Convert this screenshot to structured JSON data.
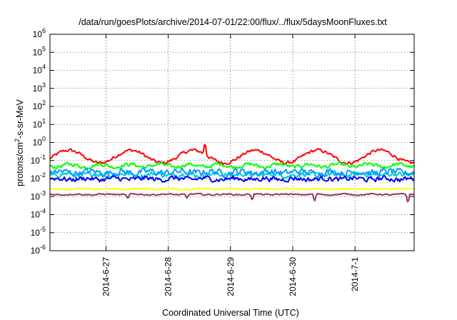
{
  "chart_data": {
    "type": "line",
    "title": "/data/run/goesPlots/archive/2014-07-01/22:00/flux/../flux/5daysMoonFluxes.txt",
    "xlabel": "Coordinated Universal Time (UTC)",
    "ylabel": {
      "base": "protons/cm",
      "sup": "2",
      "rest": "-s-sr-MeV"
    },
    "y_scale": "log",
    "ylim_exponents": [
      -6,
      6
    ],
    "y_ticks": [
      {
        "base": "10",
        "exp": "6"
      },
      {
        "base": "10",
        "exp": "5"
      },
      {
        "base": "10",
        "exp": "4"
      },
      {
        "base": "10",
        "exp": "3"
      },
      {
        "base": "10",
        "exp": "2"
      },
      {
        "base": "10",
        "exp": "1"
      },
      {
        "base": "10",
        "exp": "0"
      },
      {
        "base": "10",
        "exp": "-1"
      },
      {
        "base": "10",
        "exp": "-2"
      },
      {
        "base": "10",
        "exp": "-3"
      },
      {
        "base": "10",
        "exp": "-4"
      },
      {
        "base": "10",
        "exp": "-5"
      },
      {
        "base": "10",
        "exp": "-6"
      }
    ],
    "x_range_days": [
      26.1,
      31.95
    ],
    "x_ticks": [
      {
        "label": "2014-6-27",
        "day": 27
      },
      {
        "label": "2014-6-28",
        "day": 28
      },
      {
        "label": "2014-6-29",
        "day": 29
      },
      {
        "label": "2014-6-30",
        "day": 30
      },
      {
        "label": "2014-7-1",
        "day": 31
      }
    ],
    "grid": true,
    "series": [
      {
        "color": "#ff0000",
        "base_log": -0.78,
        "amp": 0.35,
        "noise": 0.14,
        "pattern": "diurnal",
        "spikes": [
          {
            "x": 28.59,
            "v": 1.2
          }
        ]
      },
      {
        "color": "#00ff00",
        "base_log": -1.28,
        "amp": 0.08,
        "noise": 0.16,
        "pattern": "noise",
        "spikes": []
      },
      {
        "color": "#00cccc",
        "base_log": -1.78,
        "amp": 0.05,
        "noise": 0.22,
        "pattern": "noise",
        "spikes": []
      },
      {
        "color": "#00a0ff",
        "base_log": -1.65,
        "amp": 0.05,
        "noise": 0.3,
        "pattern": "noise",
        "spikes": []
      },
      {
        "color": "#0000ff",
        "base_log": -2.02,
        "amp": 0.04,
        "noise": 0.22,
        "pattern": "noise",
        "spikes": []
      },
      {
        "color": "#ffff00",
        "base_log": -2.58,
        "amp": 0.02,
        "noise": 0.05,
        "pattern": "noise",
        "spikes": []
      },
      {
        "color": "#993366",
        "base_log": -2.88,
        "amp": 0.02,
        "noise": 0.06,
        "pattern": "noise",
        "spikes": [
          {
            "x": 27.35,
            "v": 0.0007
          },
          {
            "x": 28.3,
            "v": 0.0008
          },
          {
            "x": 29.35,
            "v": 0.0006
          },
          {
            "x": 30.35,
            "v": 0.0005
          },
          {
            "x": 31.85,
            "v": 0.0004
          }
        ]
      }
    ]
  }
}
